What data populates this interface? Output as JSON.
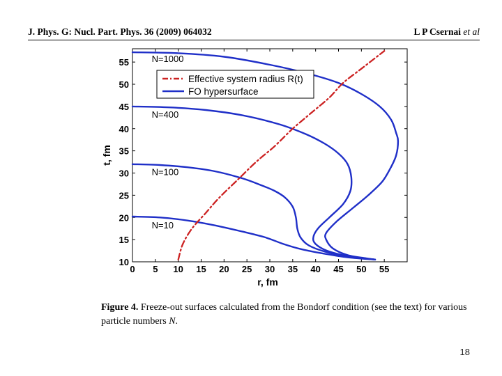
{
  "header": {
    "journal_prefix": "J. Phys. G: Nucl. Part. Phys.",
    "volume": "36",
    "year_article": "(2009) 064032",
    "author": "L P Csernai",
    "et_al": "et al"
  },
  "chart_data": {
    "type": "line",
    "xlabel": "r, fm",
    "ylabel": "t, fm",
    "xlim": [
      0,
      60
    ],
    "ylim": [
      10,
      58
    ],
    "xticks": [
      0,
      5,
      10,
      15,
      20,
      25,
      30,
      35,
      40,
      45,
      50,
      55
    ],
    "yticks": [
      10,
      15,
      20,
      25,
      30,
      35,
      40,
      45,
      50,
      55
    ],
    "legend": {
      "position": "top",
      "entries": [
        {
          "label": "Effective system radius R(t)",
          "color": "#cc2222",
          "style": "dash-dot"
        },
        {
          "label": "FO hypersurface",
          "color": "#1f2fc8",
          "style": "solid"
        }
      ]
    },
    "series": [
      {
        "name": "N=1000",
        "color": "#1f2fc8",
        "points": [
          [
            0,
            57.2
          ],
          [
            10,
            57.0
          ],
          [
            20,
            56.2
          ],
          [
            30,
            54.4
          ],
          [
            38,
            52.5
          ],
          [
            45,
            50.3
          ],
          [
            50,
            47.8
          ],
          [
            54,
            45.0
          ],
          [
            56.5,
            42.0
          ],
          [
            57.6,
            39.0
          ],
          [
            58,
            37.2
          ],
          [
            57.6,
            34.0
          ],
          [
            56.3,
            31.0
          ],
          [
            54.5,
            28.0
          ],
          [
            51.5,
            25.0
          ],
          [
            48,
            22.0
          ],
          [
            44.5,
            19.0
          ],
          [
            42.3,
            16.5
          ],
          [
            42.3,
            15.0
          ],
          [
            43.8,
            13.0
          ],
          [
            47,
            11.5
          ],
          [
            51,
            10.8
          ],
          [
            53,
            10.5
          ]
        ]
      },
      {
        "name": "N=400",
        "color": "#1f2fc8",
        "points": [
          [
            0,
            45.0
          ],
          [
            8,
            44.8
          ],
          [
            16,
            44.2
          ],
          [
            24,
            43.0
          ],
          [
            32,
            41.0
          ],
          [
            38,
            38.7
          ],
          [
            42,
            36.6
          ],
          [
            45,
            34.4
          ],
          [
            47,
            32.0
          ],
          [
            47.8,
            29.0
          ],
          [
            47.6,
            26.0
          ],
          [
            46,
            23.0
          ],
          [
            43,
            20.0
          ],
          [
            40.5,
            17.5
          ],
          [
            39.5,
            15.5
          ],
          [
            40,
            14.0
          ],
          [
            42.5,
            12.5
          ],
          [
            47,
            11.3
          ],
          [
            53,
            10.5
          ]
        ]
      },
      {
        "name": "N=100",
        "color": "#1f2fc8",
        "points": [
          [
            0,
            32.0
          ],
          [
            6,
            31.8
          ],
          [
            12,
            31.3
          ],
          [
            18,
            30.4
          ],
          [
            24,
            28.8
          ],
          [
            28,
            27.3
          ],
          [
            31,
            26.0
          ],
          [
            33.3,
            24.5
          ],
          [
            35,
            22.4
          ],
          [
            35.7,
            20.0
          ],
          [
            36,
            17.5
          ],
          [
            36.7,
            15.5
          ],
          [
            38.5,
            13.7
          ],
          [
            42,
            12.3
          ],
          [
            47,
            11.2
          ],
          [
            53,
            10.5
          ]
        ]
      },
      {
        "name": "N=10",
        "color": "#1f2fc8",
        "points": [
          [
            0,
            20.2
          ],
          [
            6,
            20.0
          ],
          [
            12,
            19.3
          ],
          [
            18,
            18.2
          ],
          [
            24,
            16.8
          ],
          [
            29,
            15.5
          ],
          [
            33,
            14.0
          ],
          [
            37,
            12.8
          ],
          [
            42,
            11.8
          ],
          [
            47,
            11.0
          ],
          [
            53,
            10.5
          ]
        ]
      },
      {
        "name": "Effective system radius R(t)",
        "color": "#cc2222",
        "dashed": true,
        "points": [
          [
            10,
            10.5
          ],
          [
            11,
            14
          ],
          [
            13,
            17.5
          ],
          [
            16,
            21
          ],
          [
            19,
            24.5
          ],
          [
            23,
            28.5
          ],
          [
            27,
            32.5
          ],
          [
            31,
            36
          ],
          [
            35,
            40
          ],
          [
            39,
            43.5
          ],
          [
            43,
            47
          ],
          [
            46,
            50.3
          ],
          [
            50,
            53.5
          ],
          [
            55,
            57.5
          ]
        ]
      }
    ],
    "annotations": [
      {
        "text": "N=1000",
        "at": [
          4.2,
          55.0
        ]
      },
      {
        "text": "N=400",
        "at": [
          4.2,
          42.5
        ]
      },
      {
        "text": "N=100",
        "at": [
          4.2,
          29.5
        ]
      },
      {
        "text": "N=10",
        "at": [
          4.2,
          17.5
        ]
      }
    ]
  },
  "caption": {
    "label": "Figure 4.",
    "text": "Freeze-out surfaces calculated from the Bondorf condition (see the text) for various particle numbers",
    "italic_end": "N",
    "end_punct": "."
  },
  "page_number": "18"
}
